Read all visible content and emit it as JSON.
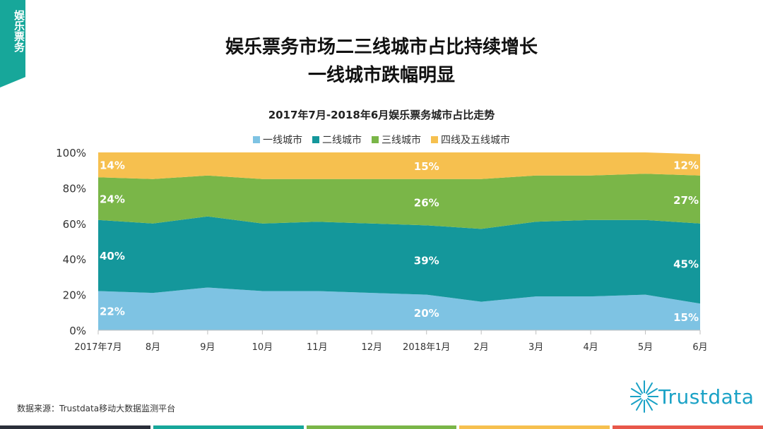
{
  "side_tag": {
    "text": "娱乐票务",
    "color": "#17a79a"
  },
  "header": {
    "title_line1": "娱乐票务市场二三线城市占比持续增长",
    "title_line2": "一线城市跌幅明显"
  },
  "footer": {
    "source": "数据来源：Trustdata移动大数据监测平台",
    "logo_text": "Trustdata",
    "bar_colors": [
      "#2b2f3a",
      "#17a79a",
      "#7ab648",
      "#f6c04f",
      "#e8584a"
    ]
  },
  "chart_data": {
    "type": "area",
    "stacked": true,
    "percent": true,
    "title": "2017年7月-2018年6月娱乐票务城市占比走势",
    "categories": [
      "2017年7月",
      "8月",
      "9月",
      "10月",
      "11月",
      "12月",
      "2018年1月",
      "2月",
      "3月",
      "4月",
      "5月",
      "6月"
    ],
    "ylim": [
      0,
      100
    ],
    "yticks": [
      "0%",
      "20%",
      "40%",
      "60%",
      "80%",
      "100%"
    ],
    "legend_position": "top",
    "grid": false,
    "series": [
      {
        "name": "一线城市",
        "color": "#7ec3e3",
        "values": [
          22,
          21,
          24,
          22,
          22,
          21,
          20,
          16,
          19,
          19,
          20,
          15
        ]
      },
      {
        "name": "二线城市",
        "color": "#14979b",
        "values": [
          40,
          39,
          40,
          38,
          39,
          39,
          39,
          41,
          42,
          43,
          42,
          45
        ]
      },
      {
        "name": "三线城市",
        "color": "#7ab648",
        "values": [
          24,
          25,
          23,
          25,
          24,
          25,
          26,
          28,
          26,
          25,
          26,
          27
        ]
      },
      {
        "name": "四线及五线城市",
        "color": "#f6c04f",
        "values": [
          14,
          15,
          13,
          15,
          15,
          15,
          15,
          15,
          13,
          13,
          12,
          12
        ]
      }
    ],
    "data_labels": [
      {
        "series": 0,
        "index": 0,
        "text": "22%"
      },
      {
        "series": 1,
        "index": 0,
        "text": "40%"
      },
      {
        "series": 2,
        "index": 0,
        "text": "24%"
      },
      {
        "series": 3,
        "index": 0,
        "text": "14%"
      },
      {
        "series": 0,
        "index": 6,
        "text": "20%"
      },
      {
        "series": 1,
        "index": 6,
        "text": "39%"
      },
      {
        "series": 2,
        "index": 6,
        "text": "26%"
      },
      {
        "series": 3,
        "index": 6,
        "text": "15%"
      },
      {
        "series": 0,
        "index": 11,
        "text": "15%"
      },
      {
        "series": 1,
        "index": 11,
        "text": "45%"
      },
      {
        "series": 2,
        "index": 11,
        "text": "27%"
      },
      {
        "series": 3,
        "index": 11,
        "text": "12%"
      }
    ]
  }
}
